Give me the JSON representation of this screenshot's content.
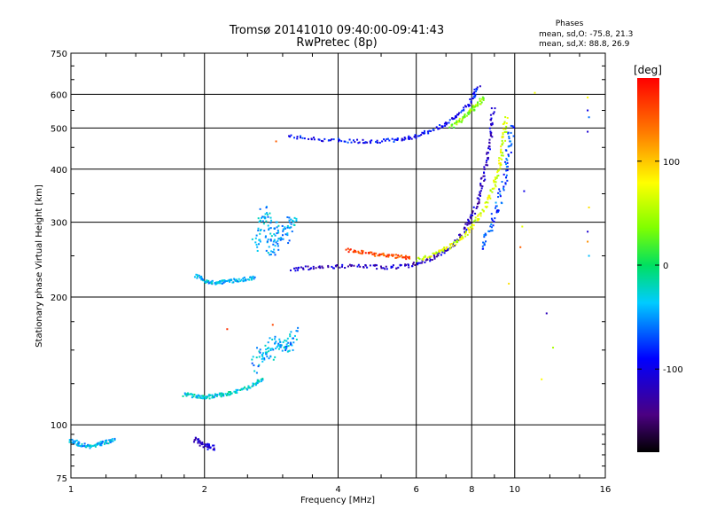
{
  "chart_data": {
    "type": "scatter",
    "title": "Tromsø 20141010 09:40:00-09:41:43",
    "subtitle": "RwPretec (8p)",
    "xlabel": "Frequency [MHz]",
    "ylabel": "Stationary phase Virtual Height [km]",
    "xscale": "log",
    "yscale": "log",
    "xlim": [
      1,
      16
    ],
    "ylim": [
      75,
      750
    ],
    "xticks": [
      1,
      2,
      4,
      6,
      8,
      10,
      16
    ],
    "yticks": [
      75,
      100,
      200,
      300,
      400,
      500,
      600,
      750
    ],
    "grid": true,
    "color_by": "phase (deg)",
    "colorbar": {
      "label": "[deg]",
      "range": [
        -180,
        180
      ],
      "ticks": [
        100,
        0,
        -100
      ]
    },
    "phases_legend": {
      "heading": "Phases",
      "O": "mean, sd,O: -75.8, 21.3",
      "X": "mean, sd,X:  88.8, 26.9"
    },
    "traces": [
      {
        "x": [
          3.1,
          3.6,
          4.2,
          4.8,
          5.4,
          5.9,
          6.4,
          7.0,
          7.5,
          8.0,
          8.3
        ],
        "y": [
          478,
          470,
          466,
          465,
          468,
          476,
          490,
          510,
          540,
          580,
          625
        ],
        "phase": -90,
        "spread": 0.02
      },
      {
        "x": [
          7.2,
          7.6,
          7.9,
          8.2,
          8.5
        ],
        "y": [
          505,
          525,
          545,
          565,
          590
        ],
        "phase": 40,
        "spread": 0.02
      },
      {
        "x": [
          3.15,
          3.5,
          4.0,
          4.6,
          5.2,
          5.8,
          6.3,
          6.8,
          7.3,
          7.7,
          8.0,
          8.3,
          8.5,
          8.7,
          8.85,
          8.95
        ],
        "y": [
          232,
          235,
          236,
          236,
          235,
          237,
          243,
          252,
          265,
          285,
          310,
          340,
          380,
          430,
          490,
          560
        ],
        "phase": -115,
        "spread": 0.02
      },
      {
        "x": [
          6.0,
          6.6,
          7.1,
          7.6,
          8.0,
          8.4,
          8.8,
          9.1,
          9.3,
          9.45,
          9.55
        ],
        "y": [
          245,
          252,
          262,
          275,
          292,
          315,
          345,
          380,
          420,
          470,
          530
        ],
        "phase": 65,
        "spread": 0.02
      },
      {
        "x": [
          8.4,
          8.8,
          9.2,
          9.5,
          9.7,
          9.85
        ],
        "y": [
          260,
          290,
          330,
          380,
          440,
          510
        ],
        "phase": -70,
        "spread": 0.03
      },
      {
        "x": [
          4.2,
          4.6,
          5.0,
          5.4,
          5.8
        ],
        "y": [
          258,
          254,
          251,
          249,
          247
        ],
        "phase": 150,
        "spread": 0.02
      },
      {
        "x": [
          1.92,
          2.0,
          2.1,
          2.2,
          2.3,
          2.45,
          2.6
        ],
        "y": [
          225,
          218,
          216,
          217,
          218,
          220,
          222
        ],
        "phase": -40,
        "spread": 0.02
      },
      {
        "x": [
          2.6,
          2.7,
          2.75,
          2.8,
          2.85,
          2.9,
          3.0,
          3.1,
          3.2
        ],
        "y": [
          260,
          290,
          320,
          280,
          250,
          300,
          270,
          290,
          310
        ],
        "phase": -45,
        "spread": 0.06
      },
      {
        "x": [
          1.8,
          1.9,
          2.0,
          2.1,
          2.2,
          2.3,
          2.45,
          2.6,
          2.7
        ],
        "y": [
          118,
          117,
          116,
          117,
          118,
          119,
          121,
          125,
          128
        ],
        "phase": -30,
        "spread": 0.02
      },
      {
        "x": [
          2.6,
          2.7,
          2.8,
          2.9,
          3.0,
          3.1,
          3.2
        ],
        "y": [
          135,
          150,
          145,
          160,
          150,
          155,
          165
        ],
        "phase": -45,
        "spread": 0.06
      },
      {
        "x": [
          1.0,
          1.05,
          1.1,
          1.15,
          1.2,
          1.25
        ],
        "y": [
          92,
          90,
          89,
          90,
          91,
          92
        ],
        "phase": -40,
        "spread": 0.02
      },
      {
        "x": [
          1.9,
          2.0,
          2.1
        ],
        "y": [
          92,
          90,
          88
        ],
        "phase": -110,
        "spread": 0.03
      }
    ],
    "points": [
      {
        "x": 2.9,
        "y": 465,
        "phase": 140
      },
      {
        "x": 2.25,
        "y": 168,
        "phase": 160
      },
      {
        "x": 2.85,
        "y": 172,
        "phase": 150
      },
      {
        "x": 11.1,
        "y": 605,
        "phase": 75
      },
      {
        "x": 10.5,
        "y": 355,
        "phase": -100
      },
      {
        "x": 10.4,
        "y": 293,
        "phase": 70
      },
      {
        "x": 10.3,
        "y": 262,
        "phase": 140
      },
      {
        "x": 9.7,
        "y": 215,
        "phase": 90
      },
      {
        "x": 11.8,
        "y": 183,
        "phase": -120
      },
      {
        "x": 12.2,
        "y": 152,
        "phase": 50
      },
      {
        "x": 11.5,
        "y": 128,
        "phase": 80
      },
      {
        "x": 14.6,
        "y": 590,
        "phase": 80
      },
      {
        "x": 14.6,
        "y": 550,
        "phase": -100
      },
      {
        "x": 14.7,
        "y": 530,
        "phase": -60
      },
      {
        "x": 14.6,
        "y": 490,
        "phase": -110
      },
      {
        "x": 14.7,
        "y": 325,
        "phase": 90
      },
      {
        "x": 14.6,
        "y": 285,
        "phase": -110
      },
      {
        "x": 14.6,
        "y": 270,
        "phase": 120
      },
      {
        "x": 14.7,
        "y": 250,
        "phase": -40
      }
    ]
  }
}
